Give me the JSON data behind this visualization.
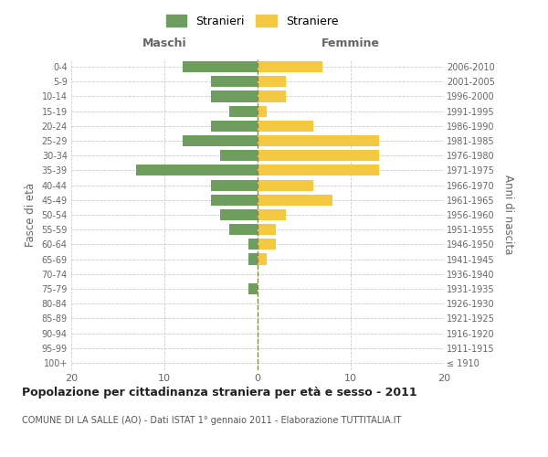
{
  "age_groups": [
    "100+",
    "95-99",
    "90-94",
    "85-89",
    "80-84",
    "75-79",
    "70-74",
    "65-69",
    "60-64",
    "55-59",
    "50-54",
    "45-49",
    "40-44",
    "35-39",
    "30-34",
    "25-29",
    "20-24",
    "15-19",
    "10-14",
    "5-9",
    "0-4"
  ],
  "birth_years": [
    "≤ 1910",
    "1911-1915",
    "1916-1920",
    "1921-1925",
    "1926-1930",
    "1931-1935",
    "1936-1940",
    "1941-1945",
    "1946-1950",
    "1951-1955",
    "1956-1960",
    "1961-1965",
    "1966-1970",
    "1971-1975",
    "1976-1980",
    "1981-1985",
    "1986-1990",
    "1991-1995",
    "1996-2000",
    "2001-2005",
    "2006-2010"
  ],
  "maschi": [
    0,
    0,
    0,
    0,
    0,
    1,
    0,
    1,
    1,
    3,
    4,
    5,
    5,
    13,
    4,
    8,
    5,
    3,
    5,
    5,
    8
  ],
  "femmine": [
    0,
    0,
    0,
    0,
    0,
    0,
    0,
    1,
    2,
    2,
    3,
    8,
    6,
    13,
    13,
    13,
    6,
    1,
    3,
    3,
    7
  ],
  "maschi_color": "#6e9e5e",
  "femmine_color": "#f5c842",
  "background_color": "#ffffff",
  "grid_color": "#cccccc",
  "title": "Popolazione per cittadinanza straniera per età e sesso - 2011",
  "subtitle": "COMUNE DI LA SALLE (AO) - Dati ISTAT 1° gennaio 2011 - Elaborazione TUTTITALIA.IT",
  "ylabel_left": "Fasce di età",
  "ylabel_right": "Anni di nascita",
  "xlabel_maschi": "Maschi",
  "xlabel_femmine": "Femmine",
  "legend_maschi": "Stranieri",
  "legend_femmine": "Straniere",
  "xlim": 20
}
